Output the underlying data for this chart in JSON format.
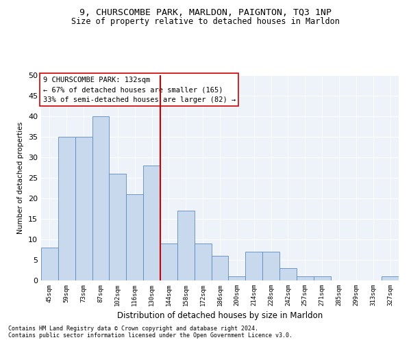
{
  "title1": "9, CHURSCOMBE PARK, MARLDON, PAIGNTON, TQ3 1NP",
  "title2": "Size of property relative to detached houses in Marldon",
  "xlabel": "Distribution of detached houses by size in Marldon",
  "ylabel": "Number of detached properties",
  "categories": [
    "45sqm",
    "59sqm",
    "73sqm",
    "87sqm",
    "102sqm",
    "116sqm",
    "130sqm",
    "144sqm",
    "158sqm",
    "172sqm",
    "186sqm",
    "200sqm",
    "214sqm",
    "228sqm",
    "242sqm",
    "257sqm",
    "271sqm",
    "285sqm",
    "299sqm",
    "313sqm",
    "327sqm"
  ],
  "values": [
    8,
    35,
    35,
    40,
    26,
    21,
    28,
    9,
    17,
    9,
    6,
    1,
    7,
    7,
    3,
    1,
    1,
    0,
    0,
    0,
    1
  ],
  "bar_color": "#c9d9ed",
  "bar_edge_color": "#5a8abf",
  "vline_x_index": 6,
  "vline_color": "#cc0000",
  "ylim": [
    0,
    50
  ],
  "yticks": [
    0,
    5,
    10,
    15,
    20,
    25,
    30,
    35,
    40,
    45,
    50
  ],
  "annotation_lines": [
    "9 CHURSCOMBE PARK: 132sqm",
    "← 67% of detached houses are smaller (165)",
    "33% of semi-detached houses are larger (82) →"
  ],
  "footnote1": "Contains HM Land Registry data © Crown copyright and database right 2024.",
  "footnote2": "Contains public sector information licensed under the Open Government Licence v3.0.",
  "bg_color": "#eef2f9",
  "grid_color": "#ffffff",
  "title1_fontsize": 9.5,
  "title2_fontsize": 8.5,
  "xlabel_fontsize": 8.5,
  "ylabel_fontsize": 7.5,
  "xtick_fontsize": 6.5,
  "ytick_fontsize": 8,
  "ann_fontsize": 7.5,
  "footnote_fontsize": 6.0
}
